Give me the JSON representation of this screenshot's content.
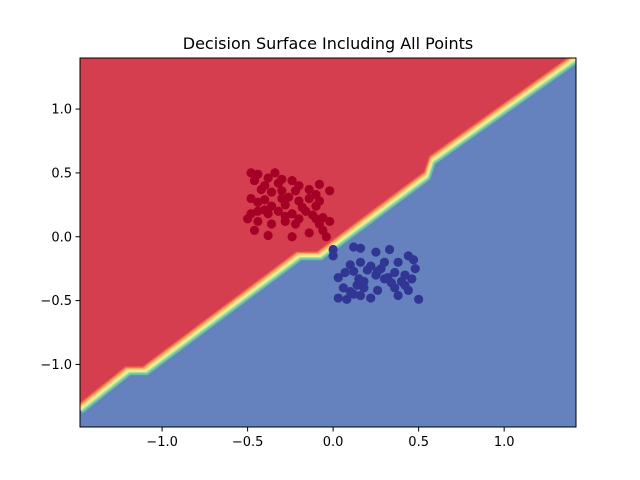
{
  "chart_data": {
    "type": "scatter",
    "title": "Decision Surface Including All Points",
    "xlabel": "",
    "ylabel": "",
    "xlim": [
      -1.48,
      1.42
    ],
    "ylim": [
      -1.49,
      1.4
    ],
    "xticks": [
      {
        "value": -1.0,
        "label": "−1.0"
      },
      {
        "value": -0.5,
        "label": "−0.5"
      },
      {
        "value": 0.0,
        "label": "0.0"
      },
      {
        "value": 0.5,
        "label": "0.5"
      },
      {
        "value": 1.0,
        "label": "1.0"
      }
    ],
    "yticks": [
      {
        "value": -1.0,
        "label": "−1.0"
      },
      {
        "value": -0.5,
        "label": "−0.5"
      },
      {
        "value": 0.0,
        "label": "0.0"
      },
      {
        "value": 0.5,
        "label": "0.5"
      },
      {
        "value": 1.0,
        "label": "1.0"
      }
    ],
    "grid": false,
    "colormap": "Spectral",
    "regions": [
      {
        "class": "red",
        "color": "#d53e4f",
        "side": "upper-left"
      },
      {
        "class": "blue",
        "color": "#6581be",
        "side": "lower-right"
      }
    ],
    "boundary": [
      [
        -1.48,
        -1.35
      ],
      [
        -1.2,
        -1.05
      ],
      [
        -1.1,
        -1.05
      ],
      [
        -0.2,
        -0.15
      ],
      [
        -0.08,
        -0.15
      ],
      [
        0.55,
        0.48
      ],
      [
        0.58,
        0.6
      ],
      [
        1.42,
        1.4
      ]
    ],
    "series": [
      {
        "color": "#a50026",
        "points": [
          [
            -0.48,
            0.5
          ],
          [
            -0.44,
            0.49
          ],
          [
            -0.38,
            0.46
          ],
          [
            -0.34,
            0.5
          ],
          [
            -0.3,
            0.45
          ],
          [
            -0.46,
            0.44
          ],
          [
            -0.4,
            0.4
          ],
          [
            -0.32,
            0.42
          ],
          [
            -0.24,
            0.44
          ],
          [
            -0.2,
            0.4
          ],
          [
            -0.14,
            0.37
          ],
          [
            -0.08,
            0.41
          ],
          [
            -0.02,
            0.36
          ],
          [
            -0.42,
            0.37
          ],
          [
            -0.36,
            0.35
          ],
          [
            -0.3,
            0.36
          ],
          [
            -0.22,
            0.36
          ],
          [
            -0.1,
            0.33
          ],
          [
            -0.48,
            0.3
          ],
          [
            -0.4,
            0.29
          ],
          [
            -0.3,
            0.3
          ],
          [
            -0.26,
            0.31
          ],
          [
            -0.2,
            0.28
          ],
          [
            -0.14,
            0.3
          ],
          [
            -0.08,
            0.28
          ],
          [
            -0.44,
            0.27
          ],
          [
            -0.36,
            0.24
          ],
          [
            -0.28,
            0.25
          ],
          [
            -0.18,
            0.23
          ],
          [
            -0.1,
            0.24
          ],
          [
            -0.48,
            0.18
          ],
          [
            -0.44,
            0.2
          ],
          [
            -0.38,
            0.18
          ],
          [
            -0.32,
            0.2
          ],
          [
            -0.24,
            0.18
          ],
          [
            -0.16,
            0.2
          ],
          [
            -0.12,
            0.17
          ],
          [
            -0.06,
            0.15
          ],
          [
            -0.02,
            0.12
          ],
          [
            -0.5,
            0.14
          ],
          [
            -0.44,
            0.12
          ],
          [
            -0.36,
            0.1
          ],
          [
            -0.28,
            0.12
          ],
          [
            -0.2,
            0.14
          ],
          [
            -0.1,
            0.14
          ],
          [
            -0.46,
            0.05
          ],
          [
            -0.38,
            0.01
          ],
          [
            -0.24,
            0.0
          ],
          [
            -0.14,
            0.03
          ],
          [
            -0.06,
            0.05
          ],
          [
            -0.04,
            0.0
          ],
          [
            -0.4,
            0.21
          ],
          [
            -0.28,
            0.16
          ],
          [
            -0.22,
            0.1
          ],
          [
            -0.08,
            0.1
          ]
        ]
      },
      {
        "color": "#313695",
        "points": [
          [
            0.0,
            -0.1
          ],
          [
            0.0,
            -0.15
          ],
          [
            0.12,
            -0.08
          ],
          [
            0.16,
            -0.09
          ],
          [
            0.25,
            -0.12
          ],
          [
            0.33,
            -0.1
          ],
          [
            0.1,
            -0.22
          ],
          [
            0.16,
            -0.2
          ],
          [
            0.22,
            -0.23
          ],
          [
            0.3,
            -0.2
          ],
          [
            0.38,
            -0.2
          ],
          [
            0.44,
            -0.15
          ],
          [
            0.47,
            -0.18
          ],
          [
            0.07,
            -0.28
          ],
          [
            0.12,
            -0.27
          ],
          [
            0.2,
            -0.26
          ],
          [
            0.28,
            -0.25
          ],
          [
            0.36,
            -0.28
          ],
          [
            0.42,
            -0.3
          ],
          [
            0.48,
            -0.25
          ],
          [
            0.03,
            -0.32
          ],
          [
            0.15,
            -0.33
          ],
          [
            0.25,
            -0.3
          ],
          [
            0.32,
            -0.32
          ],
          [
            0.4,
            -0.35
          ],
          [
            0.46,
            -0.33
          ],
          [
            0.06,
            -0.4
          ],
          [
            0.14,
            -0.38
          ],
          [
            0.18,
            -0.4
          ],
          [
            0.26,
            -0.42
          ],
          [
            0.36,
            -0.4
          ],
          [
            0.44,
            -0.42
          ],
          [
            0.12,
            -0.45
          ],
          [
            0.16,
            -0.46
          ],
          [
            0.22,
            -0.48
          ],
          [
            0.38,
            -0.46
          ],
          [
            0.5,
            -0.49
          ],
          [
            0.03,
            -0.48
          ],
          [
            0.08,
            -0.49
          ],
          [
            0.3,
            -0.33
          ],
          [
            0.18,
            -0.35
          ],
          [
            0.26,
            -0.27
          ],
          [
            0.34,
            -0.36
          ],
          [
            0.1,
            -0.43
          ],
          [
            0.42,
            -0.38
          ]
        ]
      }
    ]
  }
}
